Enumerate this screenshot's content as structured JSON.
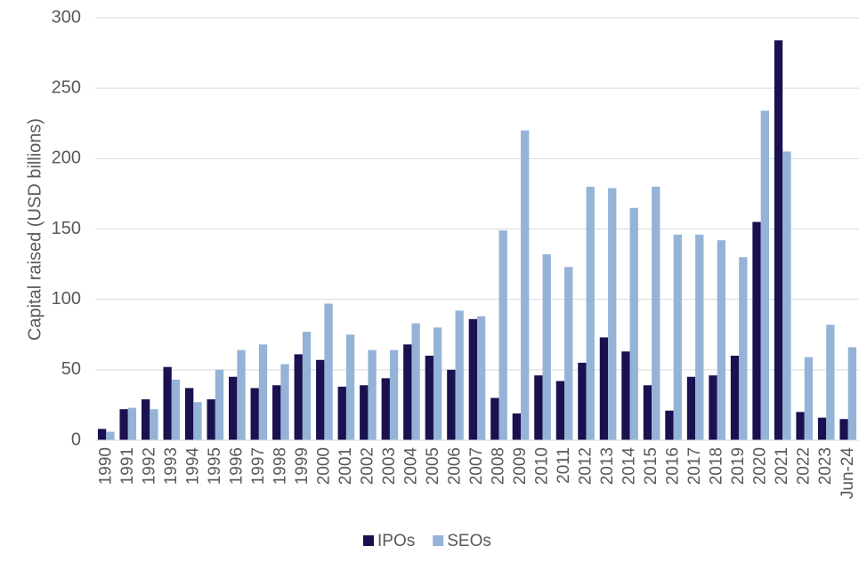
{
  "chart_data": {
    "type": "bar",
    "y_label": "Capital raised (USD billions)",
    "categories": [
      "1990",
      "1991",
      "1992",
      "1993",
      "1994",
      "1995",
      "1996",
      "1997",
      "1998",
      "1999",
      "2000",
      "2001",
      "2002",
      "2003",
      "2004",
      "2005",
      "2006",
      "2007",
      "2008",
      "2009",
      "2010",
      "2011",
      "2012",
      "2013",
      "2014",
      "2015",
      "2016",
      "2017",
      "2018",
      "2019",
      "2020",
      "2021",
      "2022",
      "2023",
      "Jun-24"
    ],
    "series": [
      {
        "name": "IPOs",
        "color": "#1a1150",
        "values": [
          8,
          22,
          29,
          52,
          37,
          29,
          45,
          37,
          39,
          61,
          57,
          38,
          39,
          44,
          68,
          60,
          50,
          86,
          30,
          19,
          46,
          42,
          55,
          73,
          63,
          39,
          21,
          45,
          46,
          60,
          155,
          284,
          20,
          16,
          15
        ]
      },
      {
        "name": "SEOs",
        "color": "#95b3d7",
        "values": [
          6,
          23,
          22,
          43,
          27,
          50,
          64,
          68,
          54,
          77,
          97,
          75,
          64,
          64,
          83,
          80,
          92,
          88,
          149,
          220,
          132,
          123,
          180,
          179,
          165,
          180,
          146,
          146,
          142,
          130,
          234,
          205,
          59,
          82,
          66
        ]
      }
    ],
    "ylim": [
      0,
      300
    ],
    "yticks": [
      0,
      50,
      100,
      150,
      200,
      250,
      300
    ],
    "grid": true,
    "legend": "bottom"
  }
}
